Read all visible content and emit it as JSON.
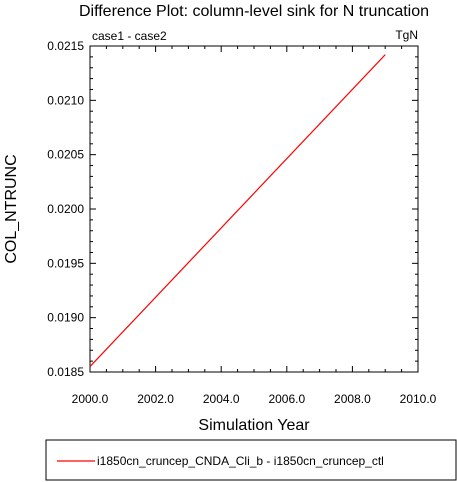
{
  "chart_data": {
    "type": "line",
    "title": "Difference Plot: column-level sink for N truncation",
    "left_subtitle": "case1 - case2",
    "right_subtitle": "TgN",
    "xlabel": "Simulation Year",
    "ylabel": "COL_NTRUNC",
    "xlim": [
      2000.0,
      2010.0
    ],
    "ylim": [
      0.0185,
      0.0215
    ],
    "xticks": [
      "2000.0",
      "2002.0",
      "2004.0",
      "2006.0",
      "2008.0",
      "2010.0"
    ],
    "xtick_values": [
      2000,
      2002,
      2004,
      2006,
      2008,
      2010
    ],
    "yticks": [
      "0.0185",
      "0.0190",
      "0.0195",
      "0.0200",
      "0.0205",
      "0.0210",
      "0.0215"
    ],
    "ytick_values": [
      0.0185,
      0.019,
      0.0195,
      0.02,
      0.0205,
      0.021,
      0.0215
    ],
    "grid": false,
    "legend_position": "bottom",
    "series": [
      {
        "name": "i1850cn_cruncep_CNDA_Cli_b - i1850cn_cruncep_ctl",
        "color": "#ff0000",
        "x": [
          2000.0,
          2009.0
        ],
        "y": [
          0.01855,
          0.02142
        ]
      }
    ]
  }
}
